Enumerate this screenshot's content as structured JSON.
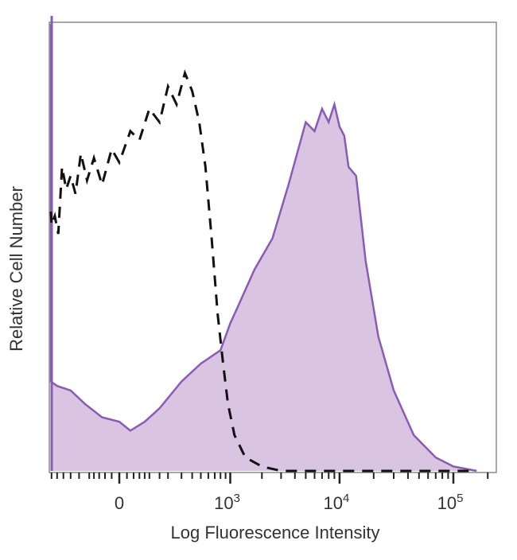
{
  "chart_data": {
    "type": "area",
    "xlabel": "Log Fluorescence Intensity",
    "ylabel": "Relative Cell Number",
    "x_scale": "biexponential",
    "x_ticks": [
      {
        "value": 0,
        "label": "0"
      },
      {
        "value": 1000,
        "label": "10",
        "exp": "3"
      },
      {
        "value": 10000,
        "label": "10",
        "exp": "4"
      },
      {
        "value": 100000,
        "label": "10",
        "exp": "5"
      }
    ],
    "ylim": [
      0,
      100
    ],
    "grid": false,
    "series": [
      {
        "style": "filled",
        "fill": "#d9c4e2",
        "stroke": "#8a5bb5",
        "points": [
          [
            -400,
            100
          ],
          [
            -380,
            20
          ],
          [
            -300,
            19
          ],
          [
            -200,
            18
          ],
          [
            -120,
            15
          ],
          [
            -50,
            12
          ],
          [
            0,
            11
          ],
          [
            30,
            9
          ],
          [
            80,
            11
          ],
          [
            150,
            14
          ],
          [
            300,
            20
          ],
          [
            500,
            24
          ],
          [
            800,
            27
          ],
          [
            1000,
            33
          ],
          [
            1200,
            37
          ],
          [
            1700,
            45
          ],
          [
            2500,
            52
          ],
          [
            3500,
            64
          ],
          [
            5000,
            78
          ],
          [
            6000,
            76
          ],
          [
            7000,
            81
          ],
          [
            8000,
            78
          ],
          [
            9000,
            82
          ],
          [
            10000,
            77
          ],
          [
            11000,
            75
          ],
          [
            12000,
            68
          ],
          [
            14000,
            66
          ],
          [
            17000,
            47
          ],
          [
            22000,
            30
          ],
          [
            30000,
            18
          ],
          [
            45000,
            8
          ],
          [
            70000,
            3
          ],
          [
            100000,
            1
          ],
          [
            160000,
            0
          ]
        ]
      },
      {
        "style": "dashed",
        "stroke": "#111111",
        "points": [
          [
            -380,
            58
          ],
          [
            -350,
            55
          ],
          [
            -320,
            57
          ],
          [
            -290,
            53
          ],
          [
            -260,
            68
          ],
          [
            -230,
            63
          ],
          [
            -200,
            66
          ],
          [
            -170,
            62
          ],
          [
            -140,
            71
          ],
          [
            -110,
            65
          ],
          [
            -80,
            70
          ],
          [
            -50,
            64
          ],
          [
            -20,
            72
          ],
          [
            0,
            69
          ],
          [
            30,
            76
          ],
          [
            60,
            74
          ],
          [
            100,
            81
          ],
          [
            150,
            78
          ],
          [
            200,
            86
          ],
          [
            260,
            82
          ],
          [
            330,
            89
          ],
          [
            400,
            85
          ],
          [
            480,
            78
          ],
          [
            560,
            68
          ],
          [
            650,
            52
          ],
          [
            750,
            35
          ],
          [
            850,
            24
          ],
          [
            950,
            15
          ],
          [
            1100,
            8
          ],
          [
            1400,
            3
          ],
          [
            2000,
            1
          ],
          [
            3000,
            0
          ],
          [
            160000,
            0
          ]
        ]
      }
    ]
  }
}
